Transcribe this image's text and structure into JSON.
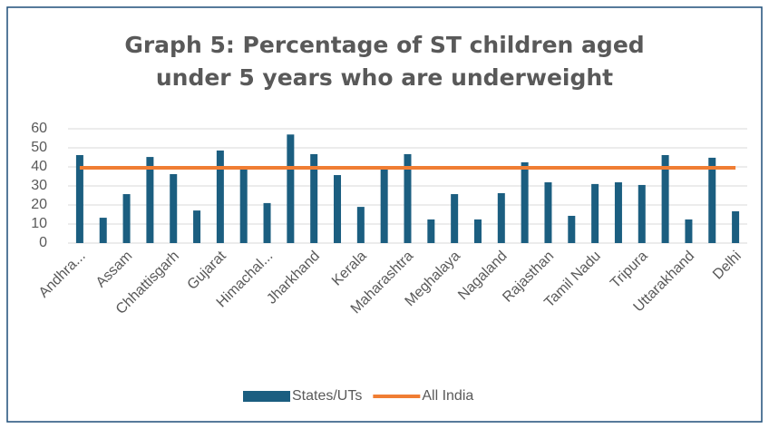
{
  "chart_data": {
    "type": "bar",
    "title": "Graph 5: Percentage of ST children aged under 5 years who are underweight",
    "categories": [
      "Andhra...",
      null,
      "Assam",
      null,
      "Chhattisgarh",
      null,
      "Gujarat",
      null,
      "Himachal...",
      null,
      "Jharkhand",
      null,
      "Kerala",
      null,
      "Maharashtra",
      null,
      "Meghalaya",
      null,
      "Nagaland",
      null,
      "Rajasthan",
      null,
      "Tamil Nadu",
      null,
      "Tripura",
      null,
      "Uttarakhand",
      null,
      "Delhi"
    ],
    "series": [
      {
        "name": "States/UTs",
        "type": "bar",
        "color": "#1b5e80",
        "values": [
          46.2,
          13.3,
          25.7,
          45.2,
          36.2,
          17.1,
          48.6,
          40,
          21,
          57,
          46.7,
          35.7,
          19,
          40,
          46.7,
          12.4,
          25.7,
          12.4,
          26.2,
          42.4,
          31.9,
          14.3,
          31,
          31.9,
          30.5,
          46.2,
          12.4,
          44.8,
          16.7
        ]
      },
      {
        "name": "All India",
        "type": "line",
        "color": "#f07d33",
        "values": [
          39.5,
          39.5,
          39.5,
          39.5,
          39.5,
          39.5,
          39.5,
          39.5,
          39.5,
          39.5,
          39.5,
          39.5,
          39.5,
          39.5,
          39.5,
          39.5,
          39.5,
          39.5,
          39.5,
          39.5,
          39.5,
          39.5,
          39.5,
          39.5,
          39.5,
          39.5,
          39.5,
          39.5,
          39.5
        ]
      }
    ],
    "ylim": [
      0,
      60
    ],
    "yticks": [
      0,
      10,
      20,
      30,
      40,
      50,
      60
    ],
    "grid": true,
    "legend": "bottom"
  }
}
